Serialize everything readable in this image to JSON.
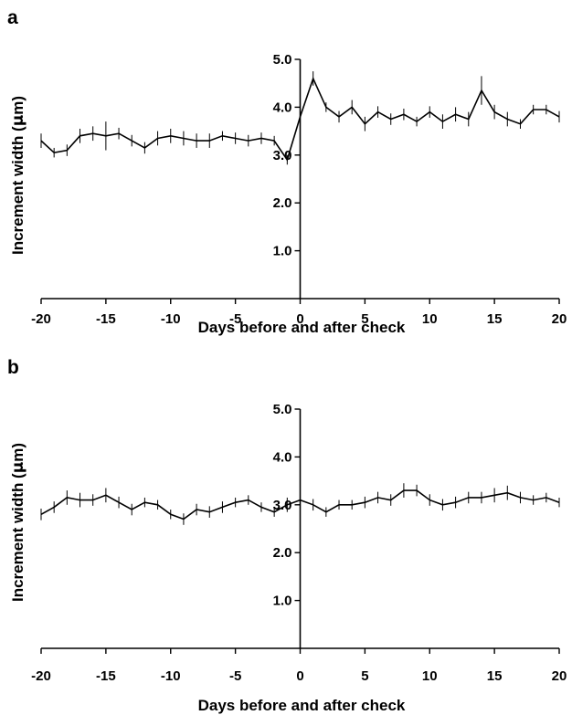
{
  "chart_data": [
    {
      "panel": "a",
      "type": "line",
      "xlabel": "Days before and after check",
      "ylabel_prefix": "Increment width (",
      "ylabel_mu": "μ",
      "ylabel_suffix": "m)",
      "xlim": [
        -20,
        20
      ],
      "ylim": [
        0,
        5
      ],
      "xticks": [
        -20,
        -15,
        -10,
        -5,
        0,
        5,
        10,
        15,
        20
      ],
      "xtick_labels": [
        "-20",
        "-15",
        "-10",
        "-5",
        "0",
        "5",
        "10",
        "15",
        "20"
      ],
      "yticks": [
        1,
        2,
        3,
        4,
        5
      ],
      "ytick_labels": [
        "1.0",
        "2.0",
        "3.0",
        "4.0",
        "5.0"
      ],
      "grid": false,
      "series": [
        {
          "x": [
            -20,
            -19,
            -18,
            -17,
            -16,
            -15,
            -14,
            -13,
            -12,
            -11,
            -10,
            -9,
            -8,
            -7,
            -6,
            -5,
            -4,
            -3,
            -2,
            -1,
            0,
            1,
            2,
            3,
            4,
            5,
            6,
            7,
            8,
            9,
            10,
            11,
            12,
            13,
            14,
            15,
            16,
            17,
            18,
            19,
            20
          ],
          "y": [
            3.3,
            3.05,
            3.1,
            3.4,
            3.45,
            3.4,
            3.45,
            3.3,
            3.15,
            3.35,
            3.4,
            3.35,
            3.3,
            3.3,
            3.4,
            3.35,
            3.3,
            3.35,
            3.3,
            2.9,
            3.8,
            4.6,
            4.0,
            3.8,
            4.0,
            3.65,
            3.9,
            3.75,
            3.85,
            3.7,
            3.9,
            3.7,
            3.85,
            3.75,
            4.35,
            3.9,
            3.75,
            3.65,
            3.95,
            3.95,
            3.8
          ],
          "err": [
            0.15,
            0.1,
            0.12,
            0.15,
            0.15,
            0.3,
            0.12,
            0.12,
            0.12,
            0.15,
            0.15,
            0.15,
            0.15,
            0.15,
            0.1,
            0.12,
            0.12,
            0.12,
            0.1,
            0.1,
            0.15,
            0.15,
            0.1,
            0.12,
            0.15,
            0.15,
            0.12,
            0.12,
            0.12,
            0.1,
            0.12,
            0.15,
            0.15,
            0.15,
            0.3,
            0.15,
            0.15,
            0.1,
            0.1,
            0.1,
            0.12
          ]
        }
      ]
    },
    {
      "panel": "b",
      "type": "line",
      "xlabel": "Days before and after check",
      "ylabel_prefix": "Increment width (",
      "ylabel_mu": "μ",
      "ylabel_suffix": "m)",
      "xlim": [
        -20,
        20
      ],
      "ylim": [
        0,
        5
      ],
      "xticks": [
        -20,
        -15,
        -10,
        -5,
        0,
        5,
        10,
        15,
        20
      ],
      "xtick_labels": [
        "-20",
        "-15",
        "-10",
        "-5",
        "0",
        "5",
        "10",
        "15",
        "20"
      ],
      "yticks": [
        1,
        2,
        3,
        4,
        5
      ],
      "ytick_labels": [
        "1.0",
        "2.0",
        "3.0",
        "4.0",
        "5.0"
      ],
      "grid": false,
      "series": [
        {
          "x": [
            -20,
            -19,
            -18,
            -17,
            -16,
            -15,
            -14,
            -13,
            -12,
            -11,
            -10,
            -9,
            -8,
            -7,
            -6,
            -5,
            -4,
            -3,
            -2,
            -1,
            0,
            1,
            2,
            3,
            4,
            5,
            6,
            7,
            8,
            9,
            10,
            11,
            12,
            13,
            14,
            15,
            16,
            17,
            18,
            19,
            20
          ],
          "y": [
            2.8,
            2.95,
            3.15,
            3.1,
            3.1,
            3.2,
            3.05,
            2.9,
            3.05,
            3.0,
            2.8,
            2.7,
            2.9,
            2.85,
            2.95,
            3.05,
            3.1,
            2.95,
            2.85,
            3.0,
            3.1,
            3.0,
            2.85,
            3.0,
            3.0,
            3.05,
            3.15,
            3.1,
            3.3,
            3.3,
            3.1,
            3.0,
            3.05,
            3.15,
            3.15,
            3.2,
            3.25,
            3.15,
            3.1,
            3.15,
            3.05
          ],
          "err": [
            0.12,
            0.12,
            0.15,
            0.15,
            0.12,
            0.15,
            0.12,
            0.12,
            0.1,
            0.1,
            0.1,
            0.12,
            0.12,
            0.12,
            0.12,
            0.1,
            0.1,
            0.1,
            0.1,
            0.15,
            0.15,
            0.12,
            0.1,
            0.1,
            0.1,
            0.12,
            0.12,
            0.12,
            0.15,
            0.12,
            0.12,
            0.12,
            0.12,
            0.12,
            0.12,
            0.15,
            0.15,
            0.12,
            0.1,
            0.1,
            0.1
          ]
        }
      ]
    }
  ]
}
